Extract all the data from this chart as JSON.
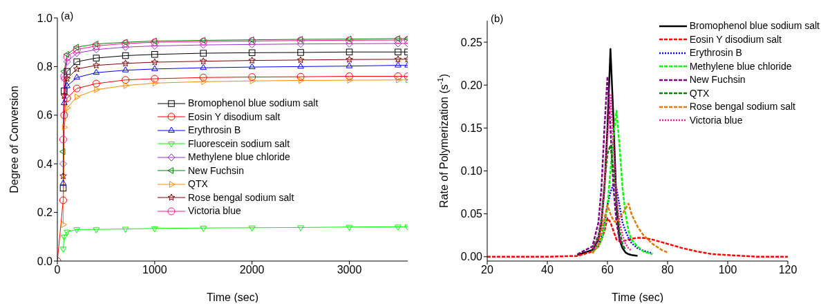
{
  "chart_data": [
    {
      "type": "line",
      "xlabel": "Time (sec)",
      "ylabel": "Degree of Conversion",
      "annotations": [
        "(a)"
      ],
      "x": [
        0,
        60,
        70,
        100,
        200,
        400,
        700,
        1000,
        1500,
        2000,
        2500,
        3000,
        3500,
        3600
      ],
      "xlim": [
        0,
        3600
      ],
      "xticks": [
        0,
        1000,
        2000,
        3000
      ],
      "ylim": [
        0,
        1
      ],
      "yticks": [
        {
          "value": 0,
          "label": "0.0"
        },
        0.2,
        0.4,
        0.6,
        0.8,
        {
          "value": 1,
          "label": "1.0"
        }
      ],
      "grid": false,
      "legend": "right",
      "line_style": "solid",
      "series": [
        {
          "name": "Bromophenol blue sodium salt",
          "color": "#000000",
          "marker": "square",
          "values": [
            null,
            0.3,
            0.7,
            0.78,
            0.82,
            0.835,
            0.845,
            0.85,
            0.855,
            0.857,
            0.858,
            0.86,
            0.86,
            0.86
          ]
        },
        {
          "name": "Eosin Y disodium salt",
          "color": "#ff0000",
          "marker": "circle",
          "values": [
            0,
            0.25,
            0.6,
            0.67,
            0.71,
            0.73,
            0.745,
            0.75,
            0.755,
            0.757,
            0.758,
            0.76,
            0.76,
            0.76
          ]
        },
        {
          "name": "Erythrosin B",
          "color": "#0000ff",
          "marker": "triangle",
          "values": [
            null,
            0.32,
            0.65,
            0.72,
            0.755,
            0.775,
            0.785,
            0.79,
            0.795,
            0.798,
            0.8,
            0.802,
            0.805,
            0.805
          ]
        },
        {
          "name": "Fluorescein sodium salt",
          "color": "#00ff00",
          "marker": "triangle_down",
          "values": [
            null,
            0.05,
            0.1,
            0.12,
            0.13,
            0.13,
            0.132,
            0.134,
            0.136,
            0.137,
            0.138,
            0.14,
            0.141,
            0.141
          ]
        },
        {
          "name": "Methylene blue chloride",
          "color": "#9933cc",
          "marker": "diamond",
          "values": [
            null,
            0.4,
            0.75,
            0.82,
            0.855,
            0.87,
            0.88,
            0.885,
            0.889,
            0.891,
            0.893,
            0.894,
            0.895,
            0.895
          ]
        },
        {
          "name": "New Fuchsin",
          "color": "#008000",
          "marker": "triangle_left",
          "values": [
            null,
            0.45,
            0.78,
            0.85,
            0.88,
            0.893,
            0.9,
            0.905,
            0.908,
            0.91,
            0.912,
            0.913,
            0.915,
            0.915
          ]
        },
        {
          "name": "QTX",
          "color": "#ff8c00",
          "marker": "triangle_right",
          "values": [
            null,
            0.15,
            0.55,
            0.63,
            0.675,
            0.705,
            0.722,
            0.732,
            0.738,
            0.741,
            0.743,
            0.744,
            0.745,
            0.745
          ]
        },
        {
          "name": "Rose bengal sodium salt",
          "color": "#800000",
          "marker": "star",
          "values": [
            null,
            0.35,
            0.68,
            0.75,
            0.79,
            0.805,
            0.813,
            0.818,
            0.822,
            0.825,
            0.827,
            0.829,
            0.83,
            0.83
          ]
        },
        {
          "name": "Victoria blue",
          "color": "#ff1493",
          "marker": "circle",
          "values": [
            null,
            0.5,
            0.76,
            0.84,
            0.87,
            0.885,
            0.895,
            0.9,
            0.903,
            0.905,
            0.907,
            0.908,
            0.909,
            0.91
          ]
        }
      ]
    },
    {
      "type": "line",
      "xlabel": "Time (sec)",
      "ylabel": "Rate of Polymerization (s$^{-1}$)",
      "annotations": [
        "(b)"
      ],
      "x": [
        20,
        40,
        50,
        55,
        57,
        58,
        59,
        60,
        61,
        62,
        63,
        64,
        65,
        66,
        67,
        68,
        70,
        72,
        75,
        78,
        80,
        85,
        90,
        95,
        100,
        110,
        120
      ],
      "xlim": [
        20,
        120
      ],
      "xticks": [
        20,
        40,
        60,
        80,
        100,
        120
      ],
      "ylim": [
        -0.005,
        0.275
      ],
      "yticks": [
        {
          "value": 0,
          "label": "0.00"
        },
        0.05,
        {
          "value": 0.1,
          "label": "0.10"
        },
        0.15,
        {
          "value": 0.2,
          "label": "0.20"
        },
        0.25
      ],
      "grid": false,
      "legend": "top right",
      "marker": "none",
      "series": [
        {
          "name": "Bromophenol blue sodium salt",
          "color": "#000000",
          "line_style": "solid",
          "values": [
            null,
            null,
            0.002,
            0.008,
            0.02,
            0.04,
            0.08,
            0.15,
            0.242,
            0.16,
            0.06,
            0.02,
            0.01,
            0.005,
            0.003,
            0.002,
            0.001,
            null,
            null,
            null,
            null,
            null,
            null,
            null,
            null,
            null,
            null
          ]
        },
        {
          "name": "Eosin Y disodium salt",
          "color": "#ff0000",
          "line_style": "dashed",
          "values": [
            0,
            0,
            0.001,
            0.006,
            0.012,
            0.02,
            0.03,
            0.045,
            0.04,
            0.03,
            0.02,
            0.018,
            0.018,
            0.019,
            0.02,
            0.021,
            0.022,
            0.022,
            0.02,
            0.017,
            0.015,
            0.01,
            0.006,
            0.003,
            0.002,
            0,
            0
          ]
        },
        {
          "name": "Erythrosin B",
          "color": "#0000ff",
          "line_style": "dotted",
          "values": [
            null,
            null,
            null,
            0.007,
            0.015,
            0.025,
            0.04,
            0.06,
            0.075,
            0.085,
            0.08,
            0.06,
            0.04,
            0.03,
            0.022,
            0.016,
            0.01,
            0.007,
            0.004,
            null,
            null,
            null,
            null,
            null,
            null,
            null,
            null
          ]
        },
        {
          "name": "Methylene blue chloride",
          "color": "#00ff00",
          "line_style": "dashed",
          "values": [
            null,
            null,
            null,
            0.005,
            0.012,
            0.02,
            0.035,
            0.06,
            0.1,
            0.14,
            0.17,
            0.13,
            0.08,
            0.05,
            0.03,
            0.02,
            0.012,
            0.006,
            0.003,
            null,
            null,
            null,
            null,
            null,
            null,
            null,
            null
          ]
        },
        {
          "name": "New Fuchsin",
          "color": "#800080",
          "line_style": "dashed",
          "values": [
            null,
            null,
            0.003,
            0.012,
            0.04,
            0.08,
            0.15,
            0.21,
            0.15,
            0.08,
            0.04,
            0.02,
            0.012,
            null,
            null,
            null,
            null,
            null,
            null,
            null,
            null,
            null,
            null,
            null,
            null,
            null,
            null
          ]
        },
        {
          "name": "QTX",
          "color": "#008000",
          "line_style": "dashed",
          "values": [
            null,
            null,
            null,
            0.009,
            0.025,
            0.045,
            0.085,
            0.12,
            0.13,
            0.1,
            0.065,
            0.03,
            0.015,
            0.008,
            null,
            null,
            null,
            null,
            null,
            null,
            null,
            null,
            null,
            null,
            null,
            null,
            null
          ]
        },
        {
          "name": "Rose bengal sodium salt",
          "color": "#e07b00",
          "line_style": "dashed",
          "values": [
            null,
            null,
            null,
            0.004,
            0.015,
            0.03,
            0.045,
            0.06,
            0.05,
            0.042,
            0.04,
            0.045,
            0.05,
            0.056,
            0.062,
            0.05,
            0.035,
            0.025,
            0.015,
            0.008,
            0.005,
            null,
            null,
            null,
            null,
            null,
            null
          ]
        },
        {
          "name": "Victoria blue",
          "color": "#ff1493",
          "line_style": "dotted",
          "values": [
            null,
            null,
            null,
            0.01,
            0.022,
            0.042,
            0.082,
            0.14,
            0.19,
            0.13,
            0.07,
            0.04,
            0.025,
            0.015,
            0.01,
            0.007,
            null,
            null,
            null,
            null,
            null,
            null,
            null,
            null,
            null,
            null,
            null
          ]
        }
      ]
    }
  ]
}
